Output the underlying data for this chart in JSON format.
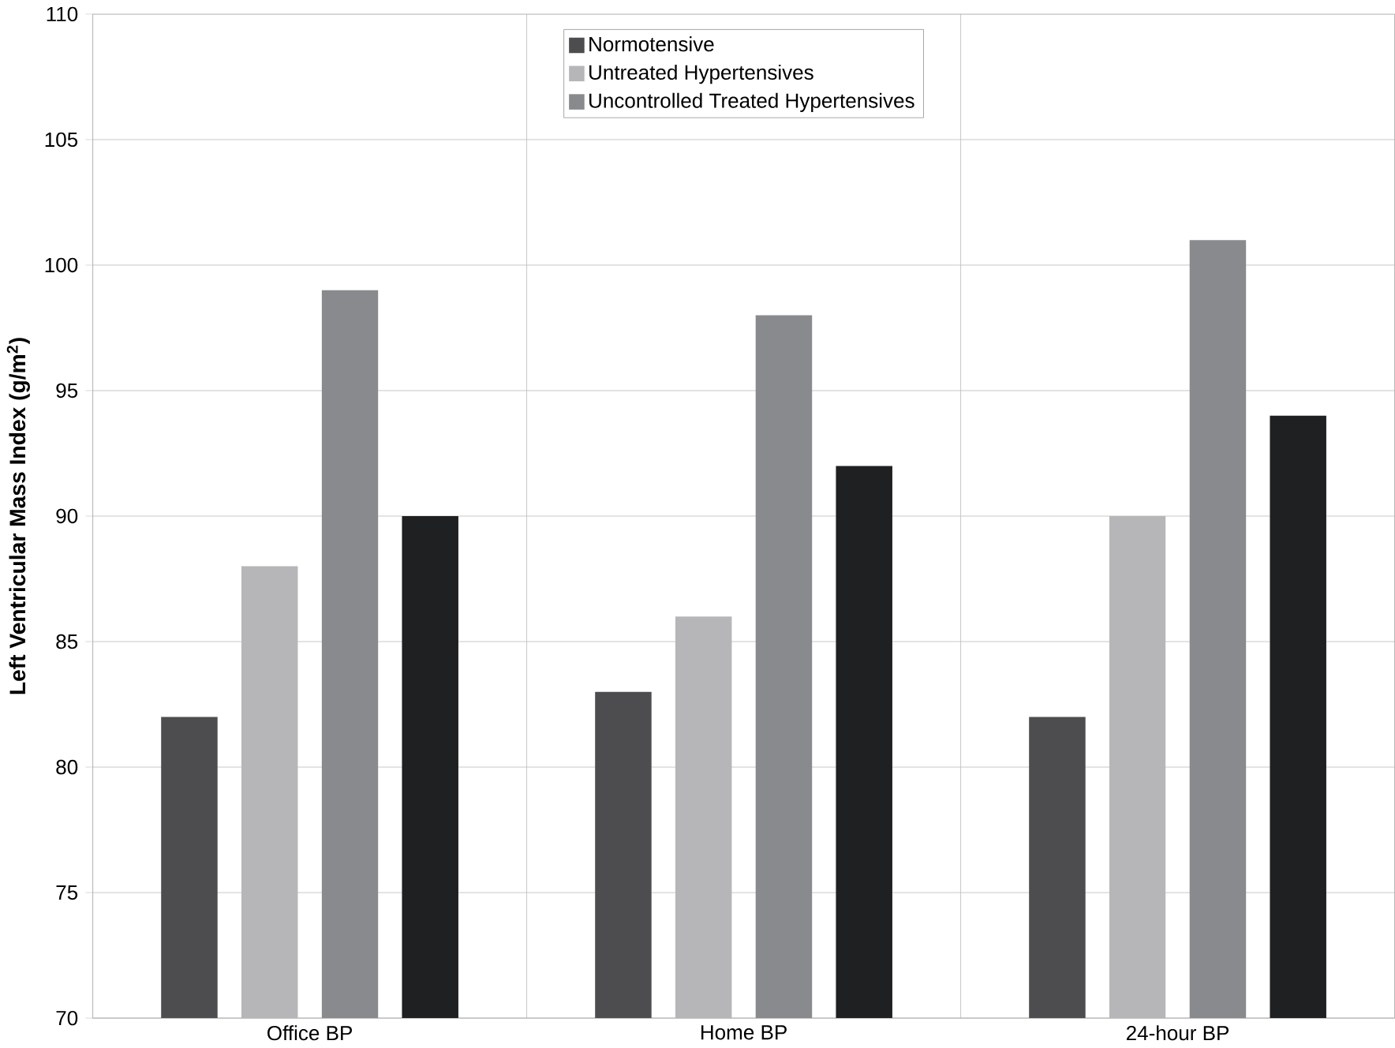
{
  "chart_data": {
    "type": "bar",
    "ylabel": "Left Ventricular Mass Index (g/m$^{2}$)",
    "categories": [
      "Office BP",
      "Home BP",
      "24-hour BP"
    ],
    "series": [
      {
        "name": "Normotensive",
        "color": "#4d4d4f",
        "values": [
          82,
          83,
          82
        ]
      },
      {
        "name": "Untreated Hypertensives",
        "color": "#b6b6b8",
        "values": [
          88,
          86,
          90
        ]
      },
      {
        "name": "Uncontrolled Treated Hypertensives",
        "color": "#898a8d",
        "values": [
          99,
          98,
          101
        ]
      },
      {
        "color": "#1f2022",
        "values": [
          90,
          92,
          94
        ]
      }
    ],
    "ylim": [
      70,
      110
    ],
    "yticks": [
      70,
      75,
      80,
      85,
      90,
      95,
      100,
      105,
      110
    ],
    "grid": true,
    "legend": "top"
  }
}
